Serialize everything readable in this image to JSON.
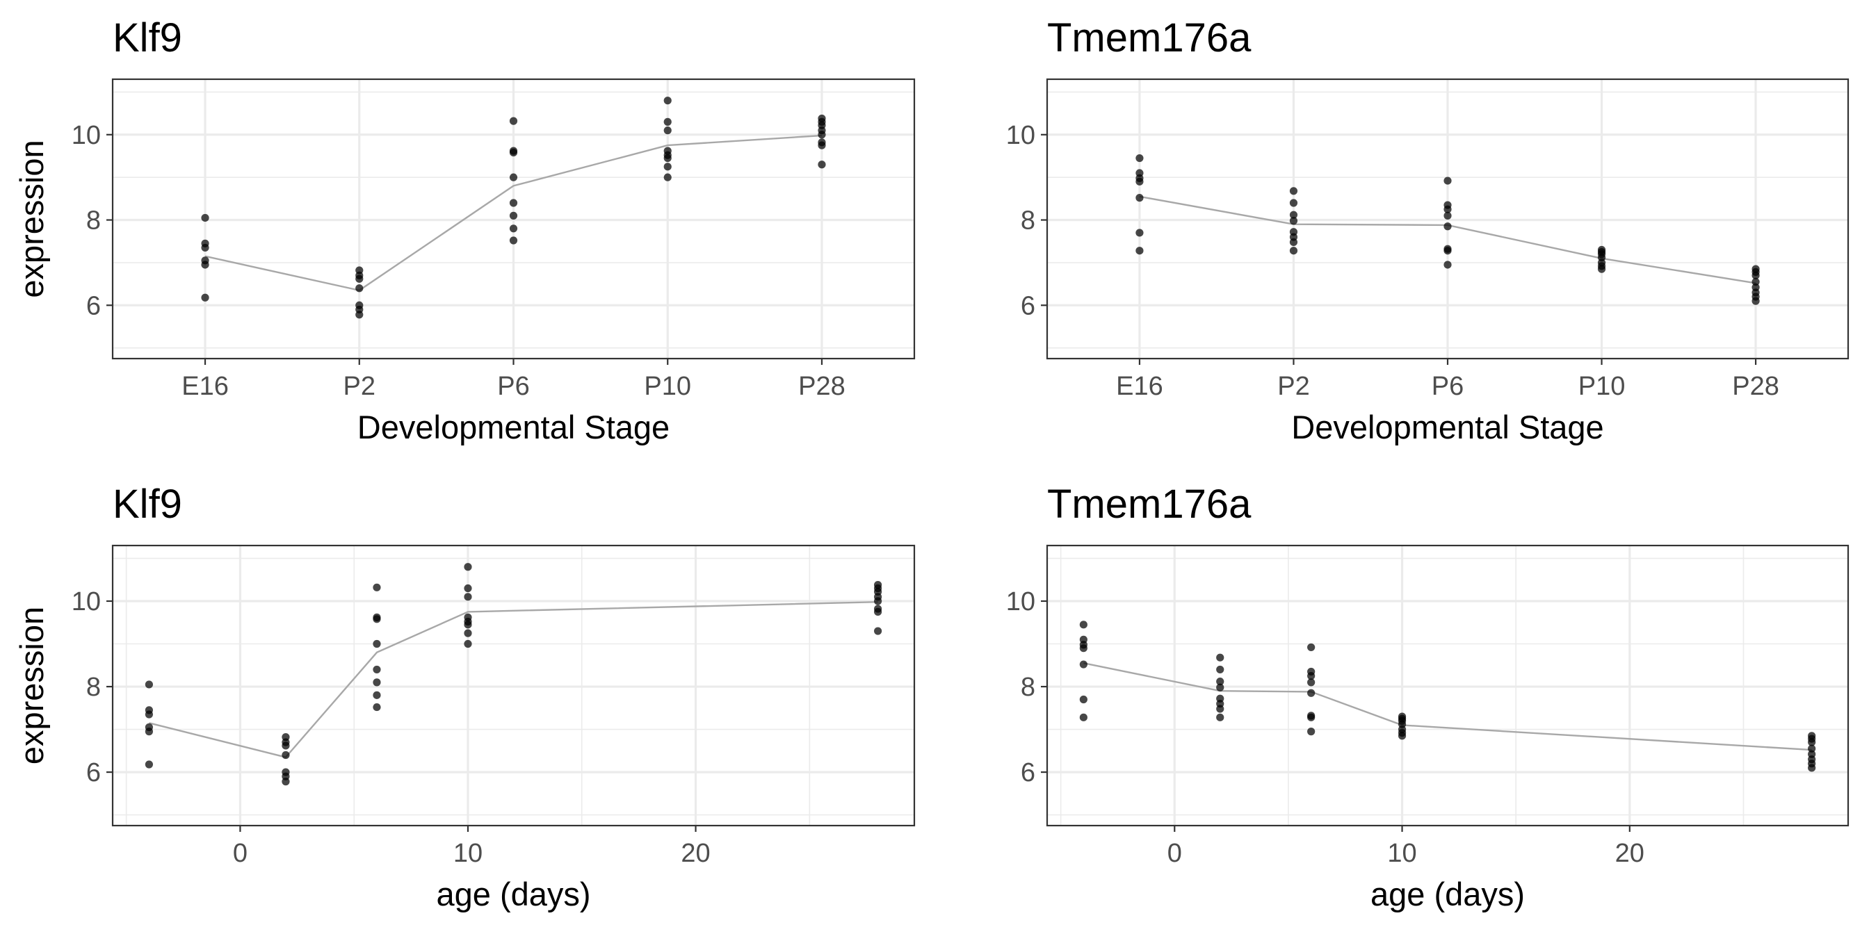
{
  "chart_data": [
    {
      "type": "scatter",
      "title": "Klf9",
      "xlabel": "Developmental Stage",
      "ylabel": "expression",
      "x_scale": "categorical",
      "categories": [
        "E16",
        "P2",
        "P6",
        "P10",
        "P28"
      ],
      "ylim": [
        4.75,
        11.3
      ],
      "yticks": [
        6,
        8,
        10
      ],
      "yticks_labels": [
        "6",
        "8",
        "10"
      ],
      "grid": true,
      "series": [
        {
          "points": [
            {
              "x": "E16",
              "y": 8.05
            },
            {
              "x": "E16",
              "y": 7.45
            },
            {
              "x": "E16",
              "y": 7.35
            },
            {
              "x": "E16",
              "y": 7.05
            },
            {
              "x": "E16",
              "y": 6.95
            },
            {
              "x": "E16",
              "y": 6.18
            },
            {
              "x": "P2",
              "y": 6.82
            },
            {
              "x": "P2",
              "y": 6.7
            },
            {
              "x": "P2",
              "y": 6.62
            },
            {
              "x": "P2",
              "y": 6.4
            },
            {
              "x": "P2",
              "y": 6.0
            },
            {
              "x": "P2",
              "y": 5.9
            },
            {
              "x": "P2",
              "y": 5.78
            },
            {
              "x": "P6",
              "y": 10.32
            },
            {
              "x": "P6",
              "y": 9.62
            },
            {
              "x": "P6",
              "y": 9.58
            },
            {
              "x": "P6",
              "y": 9.0
            },
            {
              "x": "P6",
              "y": 8.4
            },
            {
              "x": "P6",
              "y": 8.1
            },
            {
              "x": "P6",
              "y": 7.8
            },
            {
              "x": "P6",
              "y": 7.52
            },
            {
              "x": "P10",
              "y": 10.8
            },
            {
              "x": "P10",
              "y": 10.3
            },
            {
              "x": "P10",
              "y": 10.1
            },
            {
              "x": "P10",
              "y": 9.62
            },
            {
              "x": "P10",
              "y": 9.52
            },
            {
              "x": "P10",
              "y": 9.45
            },
            {
              "x": "P10",
              "y": 9.25
            },
            {
              "x": "P10",
              "y": 9.0
            },
            {
              "x": "P28",
              "y": 10.38
            },
            {
              "x": "P28",
              "y": 10.3
            },
            {
              "x": "P28",
              "y": 10.22
            },
            {
              "x": "P28",
              "y": 10.1
            },
            {
              "x": "P28",
              "y": 10.0
            },
            {
              "x": "P28",
              "y": 9.82
            },
            {
              "x": "P28",
              "y": 9.75
            },
            {
              "x": "P28",
              "y": 9.3
            }
          ],
          "mean_line": [
            {
              "x": "E16",
              "y": 7.15
            },
            {
              "x": "P2",
              "y": 6.35
            },
            {
              "x": "P6",
              "y": 8.8
            },
            {
              "x": "P10",
              "y": 9.75
            },
            {
              "x": "P28",
              "y": 9.98
            }
          ]
        }
      ]
    },
    {
      "type": "scatter",
      "title": "Tmem176a",
      "xlabel": "Developmental Stage",
      "ylabel": "",
      "x_scale": "categorical",
      "categories": [
        "E16",
        "P2",
        "P6",
        "P10",
        "P28"
      ],
      "ylim": [
        4.75,
        11.3
      ],
      "yticks": [
        6,
        8,
        10
      ],
      "yticks_labels": [
        "6",
        "8",
        "10"
      ],
      "grid": true,
      "series": [
        {
          "points": [
            {
              "x": "E16",
              "y": 9.45
            },
            {
              "x": "E16",
              "y": 9.1
            },
            {
              "x": "E16",
              "y": 8.98
            },
            {
              "x": "E16",
              "y": 8.9
            },
            {
              "x": "E16",
              "y": 8.52
            },
            {
              "x": "E16",
              "y": 7.7
            },
            {
              "x": "E16",
              "y": 7.28
            },
            {
              "x": "P2",
              "y": 8.68
            },
            {
              "x": "P2",
              "y": 8.4
            },
            {
              "x": "P2",
              "y": 8.12
            },
            {
              "x": "P2",
              "y": 7.98
            },
            {
              "x": "P2",
              "y": 7.72
            },
            {
              "x": "P2",
              "y": 7.6
            },
            {
              "x": "P2",
              "y": 7.48
            },
            {
              "x": "P2",
              "y": 7.28
            },
            {
              "x": "P6",
              "y": 8.92
            },
            {
              "x": "P6",
              "y": 8.35
            },
            {
              "x": "P6",
              "y": 8.25
            },
            {
              "x": "P6",
              "y": 8.1
            },
            {
              "x": "P6",
              "y": 7.85
            },
            {
              "x": "P6",
              "y": 7.32
            },
            {
              "x": "P6",
              "y": 7.28
            },
            {
              "x": "P6",
              "y": 6.95
            },
            {
              "x": "P10",
              "y": 7.3
            },
            {
              "x": "P10",
              "y": 7.25
            },
            {
              "x": "P10",
              "y": 7.2
            },
            {
              "x": "P10",
              "y": 7.12
            },
            {
              "x": "P10",
              "y": 7.0
            },
            {
              "x": "P10",
              "y": 6.92
            },
            {
              "x": "P10",
              "y": 6.85
            },
            {
              "x": "P28",
              "y": 6.85
            },
            {
              "x": "P28",
              "y": 6.78
            },
            {
              "x": "P28",
              "y": 6.7
            },
            {
              "x": "P28",
              "y": 6.55
            },
            {
              "x": "P28",
              "y": 6.42
            },
            {
              "x": "P28",
              "y": 6.3
            },
            {
              "x": "P28",
              "y": 6.2
            },
            {
              "x": "P28",
              "y": 6.1
            }
          ],
          "mean_line": [
            {
              "x": "E16",
              "y": 8.55
            },
            {
              "x": "P2",
              "y": 7.9
            },
            {
              "x": "P6",
              "y": 7.88
            },
            {
              "x": "P10",
              "y": 7.1
            },
            {
              "x": "P28",
              "y": 6.52
            }
          ]
        }
      ]
    },
    {
      "type": "scatter",
      "title": "Klf9",
      "xlabel": "age (days)",
      "ylabel": "expression",
      "x_scale": "linear",
      "xlim": [
        -5.6,
        29.6
      ],
      "xticks": [
        0,
        10,
        20
      ],
      "xticks_labels": [
        "0",
        "10",
        "20"
      ],
      "ylim": [
        4.75,
        11.3
      ],
      "yticks": [
        6,
        8,
        10
      ],
      "yticks_labels": [
        "6",
        "8",
        "10"
      ],
      "grid": true,
      "series": [
        {
          "points": [
            {
              "x": -4,
              "y": 8.05
            },
            {
              "x": -4,
              "y": 7.45
            },
            {
              "x": -4,
              "y": 7.35
            },
            {
              "x": -4,
              "y": 7.05
            },
            {
              "x": -4,
              "y": 6.95
            },
            {
              "x": -4,
              "y": 6.18
            },
            {
              "x": 2,
              "y": 6.82
            },
            {
              "x": 2,
              "y": 6.7
            },
            {
              "x": 2,
              "y": 6.62
            },
            {
              "x": 2,
              "y": 6.4
            },
            {
              "x": 2,
              "y": 6.0
            },
            {
              "x": 2,
              "y": 5.9
            },
            {
              "x": 2,
              "y": 5.78
            },
            {
              "x": 6,
              "y": 10.32
            },
            {
              "x": 6,
              "y": 9.62
            },
            {
              "x": 6,
              "y": 9.58
            },
            {
              "x": 6,
              "y": 9.0
            },
            {
              "x": 6,
              "y": 8.4
            },
            {
              "x": 6,
              "y": 8.1
            },
            {
              "x": 6,
              "y": 7.8
            },
            {
              "x": 6,
              "y": 7.52
            },
            {
              "x": 10,
              "y": 10.8
            },
            {
              "x": 10,
              "y": 10.3
            },
            {
              "x": 10,
              "y": 10.1
            },
            {
              "x": 10,
              "y": 9.62
            },
            {
              "x": 10,
              "y": 9.52
            },
            {
              "x": 10,
              "y": 9.45
            },
            {
              "x": 10,
              "y": 9.25
            },
            {
              "x": 10,
              "y": 9.0
            },
            {
              "x": 28,
              "y": 10.38
            },
            {
              "x": 28,
              "y": 10.3
            },
            {
              "x": 28,
              "y": 10.22
            },
            {
              "x": 28,
              "y": 10.1
            },
            {
              "x": 28,
              "y": 10.0
            },
            {
              "x": 28,
              "y": 9.82
            },
            {
              "x": 28,
              "y": 9.75
            },
            {
              "x": 28,
              "y": 9.3
            }
          ],
          "mean_line": [
            {
              "x": -4,
              "y": 7.15
            },
            {
              "x": 2,
              "y": 6.35
            },
            {
              "x": 6,
              "y": 8.8
            },
            {
              "x": 10,
              "y": 9.75
            },
            {
              "x": 28,
              "y": 9.98
            }
          ]
        }
      ]
    },
    {
      "type": "scatter",
      "title": "Tmem176a",
      "xlabel": "age (days)",
      "ylabel": "",
      "x_scale": "linear",
      "xlim": [
        -5.6,
        29.6
      ],
      "xticks": [
        0,
        10,
        20
      ],
      "xticks_labels": [
        "0",
        "10",
        "20"
      ],
      "ylim": [
        4.75,
        11.3
      ],
      "yticks": [
        6,
        8,
        10
      ],
      "yticks_labels": [
        "6",
        "8",
        "10"
      ],
      "grid": true,
      "series": [
        {
          "points": [
            {
              "x": -4,
              "y": 9.45
            },
            {
              "x": -4,
              "y": 9.1
            },
            {
              "x": -4,
              "y": 8.98
            },
            {
              "x": -4,
              "y": 8.9
            },
            {
              "x": -4,
              "y": 8.52
            },
            {
              "x": -4,
              "y": 7.7
            },
            {
              "x": -4,
              "y": 7.28
            },
            {
              "x": 2,
              "y": 8.68
            },
            {
              "x": 2,
              "y": 8.4
            },
            {
              "x": 2,
              "y": 8.12
            },
            {
              "x": 2,
              "y": 7.98
            },
            {
              "x": 2,
              "y": 7.72
            },
            {
              "x": 2,
              "y": 7.6
            },
            {
              "x": 2,
              "y": 7.48
            },
            {
              "x": 2,
              "y": 7.28
            },
            {
              "x": 6,
              "y": 8.92
            },
            {
              "x": 6,
              "y": 8.35
            },
            {
              "x": 6,
              "y": 8.25
            },
            {
              "x": 6,
              "y": 8.1
            },
            {
              "x": 6,
              "y": 7.85
            },
            {
              "x": 6,
              "y": 7.32
            },
            {
              "x": 6,
              "y": 7.28
            },
            {
              "x": 6,
              "y": 6.95
            },
            {
              "x": 10,
              "y": 7.3
            },
            {
              "x": 10,
              "y": 7.25
            },
            {
              "x": 10,
              "y": 7.2
            },
            {
              "x": 10,
              "y": 7.12
            },
            {
              "x": 10,
              "y": 7.0
            },
            {
              "x": 10,
              "y": 6.92
            },
            {
              "x": 10,
              "y": 6.85
            },
            {
              "x": 28,
              "y": 6.85
            },
            {
              "x": 28,
              "y": 6.78
            },
            {
              "x": 28,
              "y": 6.7
            },
            {
              "x": 28,
              "y": 6.55
            },
            {
              "x": 28,
              "y": 6.42
            },
            {
              "x": 28,
              "y": 6.3
            },
            {
              "x": 28,
              "y": 6.2
            },
            {
              "x": 28,
              "y": 6.1
            }
          ],
          "mean_line": [
            {
              "x": -4,
              "y": 8.55
            },
            {
              "x": 2,
              "y": 7.9
            },
            {
              "x": 6,
              "y": 7.88
            },
            {
              "x": 10,
              "y": 7.1
            },
            {
              "x": 28,
              "y": 6.52
            }
          ]
        }
      ]
    }
  ]
}
